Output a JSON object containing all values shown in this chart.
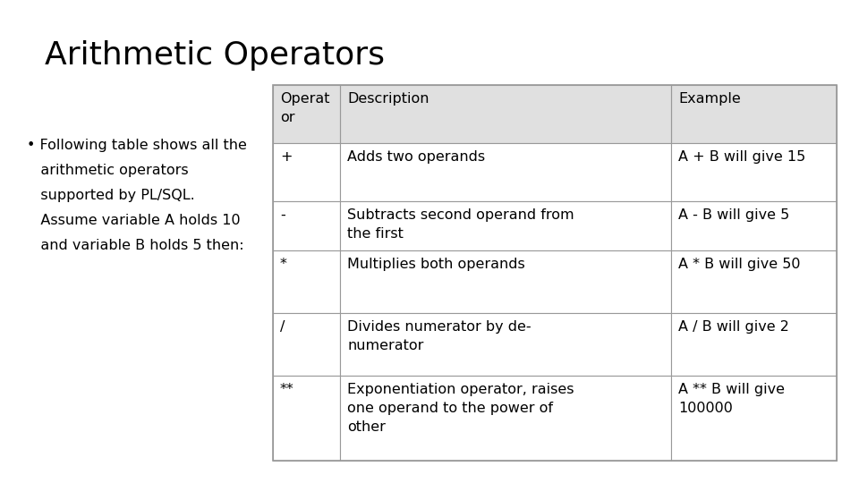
{
  "title": "Arithmetic Operators",
  "title_fontsize": 26,
  "background_color": "#ffffff",
  "header_bg": "#e0e0e0",
  "row_bg": "#ffffff",
  "border_color": "#999999",
  "text_color": "#000000",
  "col_header_display": [
    "Operat\nor",
    "Description",
    "Example"
  ],
  "rows": [
    [
      "+",
      "Adds two operands",
      "A + B will give 15"
    ],
    [
      "-",
      "Subtracts second operand from\nthe first",
      "A - B will give 5"
    ],
    [
      "*",
      "Multiplies both operands",
      "A * B will give 50"
    ],
    [
      "/",
      "Divides numerator by de-\nnumerator",
      "A / B will give 2"
    ],
    [
      "**",
      "Exponentiation operator, raises\none operand to the power of\nother",
      "A ** B will give\n100000"
    ]
  ],
  "bullet_lines": [
    "• Following table shows all the",
    "   arithmetic operators",
    "   supported by PL/SQL.",
    "   Assume variable A holds 10",
    "   and variable B holds 5 then:"
  ],
  "font_size": 11.5
}
